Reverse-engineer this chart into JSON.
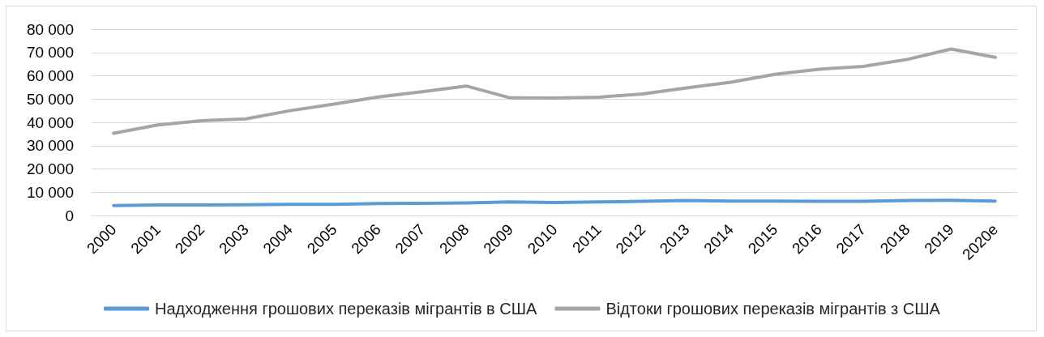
{
  "chart_data": {
    "type": "line",
    "categories": [
      "2000",
      "2001",
      "2002",
      "2003",
      "2004",
      "2005",
      "2006",
      "2007",
      "2008",
      "2009",
      "2010",
      "2011",
      "2012",
      "2013",
      "2014",
      "2015",
      "2016",
      "2017",
      "2018",
      "2019",
      "2020e"
    ],
    "series": [
      {
        "name": "Надходження грошових переказів мігрантів в США",
        "color": "#5b9bd5",
        "values": [
          4300,
          4500,
          4500,
          4600,
          4800,
          4800,
          5100,
          5200,
          5400,
          5800,
          5600,
          5800,
          6100,
          6400,
          6200,
          6200,
          6100,
          6100,
          6400,
          6500,
          6200
        ]
      },
      {
        "name": "Відтоки грошових переказів мігрантів з США",
        "color": "#a5a5a5",
        "values": [
          35300,
          38900,
          40700,
          41500,
          45000,
          47800,
          50900,
          53100,
          55600,
          50500,
          50400,
          50800,
          52200,
          54800,
          57200,
          60600,
          62800,
          64000,
          67000,
          71500,
          67900
        ]
      }
    ],
    "ylim": [
      0,
      80000
    ],
    "yticks": [
      0,
      {
        "value": 10000,
        "label": "10 000"
      },
      {
        "value": 20000,
        "label": "20 000"
      },
      {
        "value": 30000,
        "label": "30 000"
      },
      {
        "value": 40000,
        "label": "40 000"
      },
      {
        "value": 50000,
        "label": "50 000"
      },
      {
        "value": 60000,
        "label": "60 000"
      },
      {
        "value": 70000,
        "label": "70 000"
      },
      {
        "value": 80000,
        "label": "80 000"
      }
    ],
    "grid": "y",
    "legend": "bottom",
    "marker": "none",
    "line_style": "solid"
  }
}
